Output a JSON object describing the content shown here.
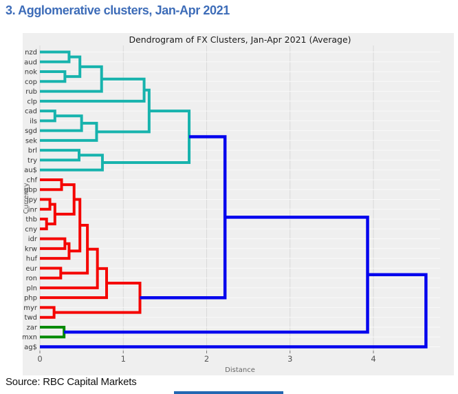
{
  "page": {
    "title": "3. Agglomerative clusters, Jan-Apr 2021",
    "source": "Source: RBC Capital Markets",
    "title_color": "#3d6cb8",
    "bottom_bar_color": "#2267b2"
  },
  "chart_data": {
    "type": "dendrogram",
    "orientation": "left-to-right",
    "title": "Dendrogram of FX Clusters, Jan-Apr 2021 (Average)",
    "xlabel": "Distance",
    "ylabel": "Currency",
    "x_ticks": [
      "0",
      "1",
      "2",
      "3",
      "4"
    ],
    "xlim": [
      0,
      4.8
    ],
    "grid": true,
    "leaves": [
      "nzd",
      "aud",
      "nok",
      "cop",
      "rub",
      "clp",
      "cad",
      "ils",
      "sgd",
      "sek",
      "brl",
      "try",
      "au$",
      "chf",
      "gbp",
      "jpy",
      "inr",
      "thb",
      "cny",
      "idr",
      "krw",
      "huf",
      "eur",
      "ron",
      "pln",
      "php",
      "myr",
      "twd",
      "zar",
      "mxn",
      "ag$"
    ],
    "colors": {
      "teal": "#17b3ad",
      "red": "#f50400",
      "green": "#038a03",
      "blue": "#0404ed"
    },
    "merges": [
      {
        "id": "t1",
        "a": "nzd",
        "b": "aud",
        "d": 0.35,
        "c": "teal"
      },
      {
        "id": "t2",
        "a": "nok",
        "b": "cop",
        "d": 0.3,
        "c": "teal"
      },
      {
        "id": "t3",
        "a": "t1",
        "b": "t2",
        "d": 0.48,
        "c": "teal"
      },
      {
        "id": "t4",
        "a": "t3",
        "b": "rub",
        "d": 0.74,
        "c": "teal"
      },
      {
        "id": "t5",
        "a": "t4",
        "b": "clp",
        "d": 1.25,
        "c": "teal"
      },
      {
        "id": "t6",
        "a": "cad",
        "b": "ils",
        "d": 0.18,
        "c": "teal"
      },
      {
        "id": "t7",
        "a": "t6",
        "b": "sgd",
        "d": 0.5,
        "c": "teal"
      },
      {
        "id": "t8",
        "a": "t7",
        "b": "sek",
        "d": 0.68,
        "c": "teal"
      },
      {
        "id": "t9",
        "a": "t5",
        "b": "t8",
        "d": 1.31,
        "c": "teal"
      },
      {
        "id": "t10",
        "a": "brl",
        "b": "try",
        "d": 0.47,
        "c": "teal"
      },
      {
        "id": "t11",
        "a": "t10",
        "b": "au$",
        "d": 0.75,
        "c": "teal"
      },
      {
        "id": "t12",
        "a": "t9",
        "b": "t11",
        "d": 1.79,
        "c": "teal"
      },
      {
        "id": "r1",
        "a": "chf",
        "b": "gbp",
        "d": 0.26,
        "c": "red"
      },
      {
        "id": "r2",
        "a": "jpy",
        "b": "inr",
        "d": 0.12,
        "c": "red"
      },
      {
        "id": "r3",
        "a": "thb",
        "b": "cny",
        "d": 0.08,
        "c": "red"
      },
      {
        "id": "r4",
        "a": "r2",
        "b": "r3",
        "d": 0.18,
        "c": "red"
      },
      {
        "id": "r5",
        "a": "r1",
        "b": "r4",
        "d": 0.41,
        "c": "red"
      },
      {
        "id": "r6",
        "a": "idr",
        "b": "krw",
        "d": 0.3,
        "c": "red"
      },
      {
        "id": "r7",
        "a": "r6",
        "b": "huf",
        "d": 0.35,
        "c": "red"
      },
      {
        "id": "r8",
        "a": "r5",
        "b": "r7",
        "d": 0.48,
        "c": "red"
      },
      {
        "id": "r9",
        "a": "eur",
        "b": "ron",
        "d": 0.25,
        "c": "red"
      },
      {
        "id": "r10",
        "a": "r8",
        "b": "r9",
        "d": 0.57,
        "c": "red"
      },
      {
        "id": "r11",
        "a": "r10",
        "b": "pln",
        "d": 0.69,
        "c": "red"
      },
      {
        "id": "r12",
        "a": "r11",
        "b": "php",
        "d": 0.8,
        "c": "red"
      },
      {
        "id": "r13",
        "a": "myr",
        "b": "twd",
        "d": 0.17,
        "c": "red"
      },
      {
        "id": "r14",
        "a": "r12",
        "b": "r13",
        "d": 1.2,
        "c": "red"
      },
      {
        "id": "g1",
        "a": "zar",
        "b": "mxn",
        "d": 0.29,
        "c": "green"
      },
      {
        "id": "b1",
        "a": "t12",
        "b": "r14",
        "d": 2.22,
        "c": "blue"
      },
      {
        "id": "b2",
        "a": "b1",
        "b": "g1",
        "d": 3.93,
        "c": "blue"
      },
      {
        "id": "b3",
        "a": "b2",
        "b": "ag$",
        "d": 4.63,
        "c": "blue"
      }
    ],
    "style": {
      "figure_bg": "#efefef",
      "v_grid_color": "#d9d9d9",
      "h_grid_color": "#f9f9f9",
      "tick_label_color": "#555555",
      "leaf_label_color": "#333333",
      "axis_label_color": "#666666",
      "title_color": "#1a1a1a",
      "line_width": 4
    }
  }
}
